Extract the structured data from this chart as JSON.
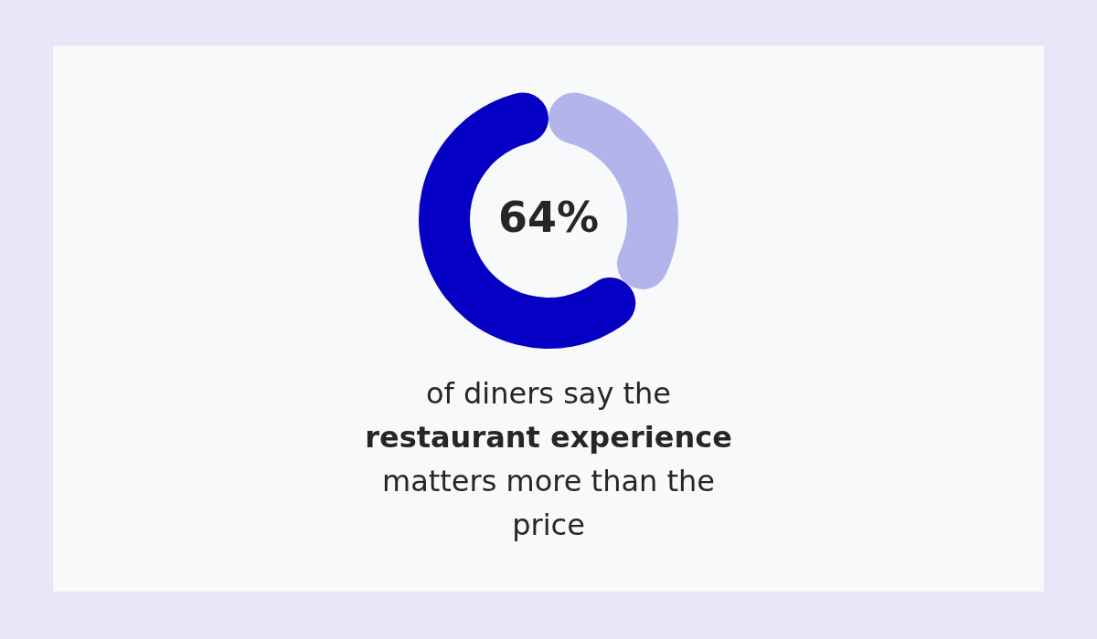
{
  "chart_data": {
    "type": "donut",
    "categories": [
      null,
      null
    ],
    "values": [
      64,
      36
    ],
    "colors": [
      "#0600c4",
      "#b4b4ec"
    ],
    "value_labels": [
      "64%",
      null
    ],
    "annotations": [
      "of diners say the",
      "restaurant experience",
      "matters more than the",
      "price"
    ],
    "legend": false
  }
}
